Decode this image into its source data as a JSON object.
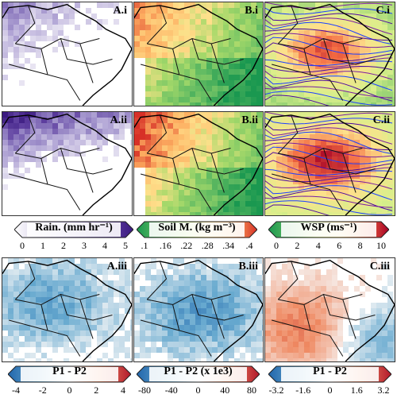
{
  "panels": {
    "Ai": "A.i",
    "Bi": "B.i",
    "Ci": "C.i",
    "Aii": "A.ii",
    "Bii": "B.ii",
    "Cii": "C.ii",
    "Aiii": "A.iii",
    "Biii": "B.iii",
    "Ciii": "C.iii"
  },
  "colorbars": [
    {
      "title": "Rain. (mm hr⁻¹)",
      "ticks": [
        "0",
        "1",
        "2",
        "3",
        "4",
        "5"
      ],
      "colors": [
        "#ffffff",
        "#d9d3ea",
        "#b3a7d6",
        "#8a77bd",
        "#5f40a0",
        "#3b1a80"
      ]
    },
    {
      "title": "Soil M. (kg m⁻³)",
      "ticks": [
        ".1",
        ".16",
        ".22",
        ".28",
        ".34",
        ".4"
      ],
      "colors": [
        "#1a9850",
        "#66bd63",
        "#a6d96a",
        "#fee08b",
        "#fdae61",
        "#d73027"
      ]
    },
    {
      "title": "WSP (ms⁻¹)",
      "ticks": [
        "0",
        "2",
        "4",
        "6",
        "8",
        "10"
      ],
      "colors": [
        "#1a9850",
        "#66bd63",
        "#d9ef8b",
        "#fee08b",
        "#f46d43",
        "#a50026"
      ]
    },
    {
      "title": "P1 - P2",
      "ticks": [
        "-4",
        "-2",
        "0",
        "2",
        "4"
      ],
      "colors": [
        "#2166ac",
        "#67a9cf",
        "#f7f7f7",
        "#ef8a62",
        "#b2182b"
      ]
    },
    {
      "title": "P1 - P2 (x 1e3)",
      "ticks": [
        "-80",
        "-40",
        "0",
        "40",
        "80"
      ],
      "colors": [
        "#2166ac",
        "#67a9cf",
        "#f7f7f7",
        "#ef8a62",
        "#b2182b"
      ]
    },
    {
      "title": "P1 - P2",
      "ticks": [
        "-3.2",
        "-1.6",
        "0",
        "1.6",
        "3.2"
      ],
      "colors": [
        "#2166ac",
        "#67a9cf",
        "#f7f7f7",
        "#ef8a62",
        "#b2182b"
      ]
    }
  ],
  "chart_data": {
    "type": "heatmap",
    "rows": [
      "i",
      "ii",
      "iii"
    ],
    "columns": [
      "A",
      "B",
      "C"
    ]
  }
}
